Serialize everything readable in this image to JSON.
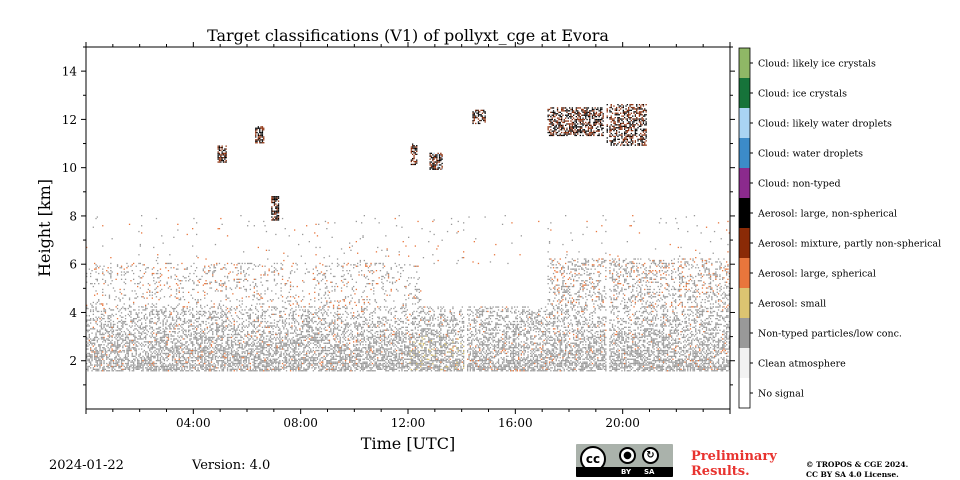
{
  "chart_data": {
    "type": "heatmap",
    "title": "Target classifications (V1) of pollyxt_cge at Evora",
    "xlabel": "Time [UTC]",
    "ylabel": "Height [km]",
    "xlim": [
      0,
      24
    ],
    "ylim": [
      0,
      15
    ],
    "x_ticks": [
      {
        "value": 4,
        "label": "04:00"
      },
      {
        "value": 8,
        "label": "08:00"
      },
      {
        "value": 12,
        "label": "12:00"
      },
      {
        "value": 16,
        "label": "16:00"
      },
      {
        "value": 20,
        "label": "20:00"
      }
    ],
    "y_ticks": [
      {
        "value": 2,
        "label": "2"
      },
      {
        "value": 4,
        "label": "4"
      },
      {
        "value": 6,
        "label": "6"
      },
      {
        "value": 8,
        "label": "8"
      },
      {
        "value": 10,
        "label": "10"
      },
      {
        "value": 12,
        "label": "12"
      },
      {
        "value": 14,
        "label": "14"
      }
    ],
    "classes": [
      {
        "label": "Cloud: likely ice crystals",
        "color": "#8fb766"
      },
      {
        "label": "Cloud: ice crystals",
        "color": "#16733a"
      },
      {
        "label": "Cloud: likely water droplets",
        "color": "#a9d4f3"
      },
      {
        "label": "Cloud: water droplets",
        "color": "#3c8bc8"
      },
      {
        "label": "Cloud: non-typed",
        "color": "#8b2a8d"
      },
      {
        "label": "Aerosol: large, non-spherical",
        "color": "#000000"
      },
      {
        "label": "Aerosol: mixture, partly non-spherical",
        "color": "#8a2a06"
      },
      {
        "label": "Aerosol: large, spherical",
        "color": "#e8763c"
      },
      {
        "label": "Aerosol: small",
        "color": "#dcc471"
      },
      {
        "label": "Non-typed particles/low conc.",
        "color": "#999999"
      },
      {
        "label": "Clean atmosphere",
        "color": "#f2f2f2"
      },
      {
        "label": "No signal",
        "color": "#ffffff"
      }
    ],
    "data_gaps_utc": [
      14.15,
      19.45
    ],
    "regions": [
      {
        "name": "boundary-layer",
        "class_index": 9,
        "x": [
          0,
          24
        ],
        "y": [
          1.55,
          4.2
        ],
        "density": 0.55,
        "secondary": [
          {
            "class_index": 7,
            "p": 0.05
          }
        ]
      },
      {
        "name": "residual-layer-sparse",
        "class_index": 9,
        "x": [
          0,
          12.5
        ],
        "y": [
          4.2,
          6.0
        ],
        "density": 0.12,
        "secondary": [
          {
            "class_index": 7,
            "p": 0.25
          }
        ]
      },
      {
        "name": "evening-aerosol-layer",
        "class_index": 9,
        "x": [
          17.2,
          24
        ],
        "y": [
          4.2,
          6.2
        ],
        "density": 0.25,
        "secondary": [
          {
            "class_index": 7,
            "p": 0.2
          }
        ]
      },
      {
        "name": "scattered-noise",
        "class_index": 9,
        "x": [
          0,
          24
        ],
        "y": [
          6.0,
          8.0
        ],
        "density": 0.015,
        "secondary": [
          {
            "class_index": 7,
            "p": 0.3
          }
        ]
      },
      {
        "name": "afternoon-dust-layer",
        "class_index": 8,
        "x": [
          12.0,
          14.2
        ],
        "y": [
          1.6,
          3.0
        ],
        "density": 0.06,
        "secondary": []
      },
      {
        "name": "cirrus-0500",
        "class_index": 6,
        "x": [
          4.9,
          5.2
        ],
        "y": [
          10.2,
          10.9
        ],
        "density": 0.7,
        "secondary": [
          {
            "class_index": 5,
            "p": 0.5
          }
        ]
      },
      {
        "name": "cirrus-0630",
        "class_index": 6,
        "x": [
          6.3,
          6.6
        ],
        "y": [
          11.0,
          11.7
        ],
        "density": 0.7,
        "secondary": [
          {
            "class_index": 5,
            "p": 0.5
          }
        ]
      },
      {
        "name": "cloud-0700",
        "class_index": 6,
        "x": [
          6.9,
          7.15
        ],
        "y": [
          7.8,
          8.8
        ],
        "density": 0.7,
        "secondary": [
          {
            "class_index": 5,
            "p": 0.5
          },
          {
            "class_index": 2,
            "p": 0.1
          }
        ]
      },
      {
        "name": "cloud-1215",
        "class_index": 6,
        "x": [
          12.1,
          12.35
        ],
        "y": [
          10.1,
          11.0
        ],
        "density": 0.6,
        "secondary": [
          {
            "class_index": 5,
            "p": 0.5
          }
        ]
      },
      {
        "name": "cloud-1300",
        "class_index": 6,
        "x": [
          12.8,
          13.3
        ],
        "y": [
          9.9,
          10.6
        ],
        "density": 0.7,
        "secondary": [
          {
            "class_index": 5,
            "p": 0.5
          },
          {
            "class_index": 2,
            "p": 0.15
          }
        ]
      },
      {
        "name": "cirrus-1430",
        "class_index": 6,
        "x": [
          14.4,
          14.9
        ],
        "y": [
          11.8,
          12.4
        ],
        "density": 0.5,
        "secondary": [
          {
            "class_index": 5,
            "p": 0.5
          }
        ]
      },
      {
        "name": "cirrus-1700",
        "class_index": 6,
        "x": [
          17.2,
          19.3
        ],
        "y": [
          11.3,
          12.5
        ],
        "density": 0.55,
        "secondary": [
          {
            "class_index": 5,
            "p": 0.55
          }
        ]
      },
      {
        "name": "cirrus-1930",
        "class_index": 6,
        "x": [
          19.4,
          20.9
        ],
        "y": [
          10.9,
          12.6
        ],
        "density": 0.5,
        "secondary": [
          {
            "class_index": 5,
            "p": 0.55
          }
        ]
      }
    ]
  },
  "footer": {
    "date": "2024-01-22",
    "version": "Version: 4.0",
    "preliminary_line1": "Preliminary",
    "preliminary_line2": "Results.",
    "copyright_line1": "© TROPOS & CGE 2024.",
    "copyright_line2": "CC BY SA 4.0 License.",
    "license_badge": {
      "cc": "cc",
      "by": "BY",
      "sa": "SA"
    }
  }
}
